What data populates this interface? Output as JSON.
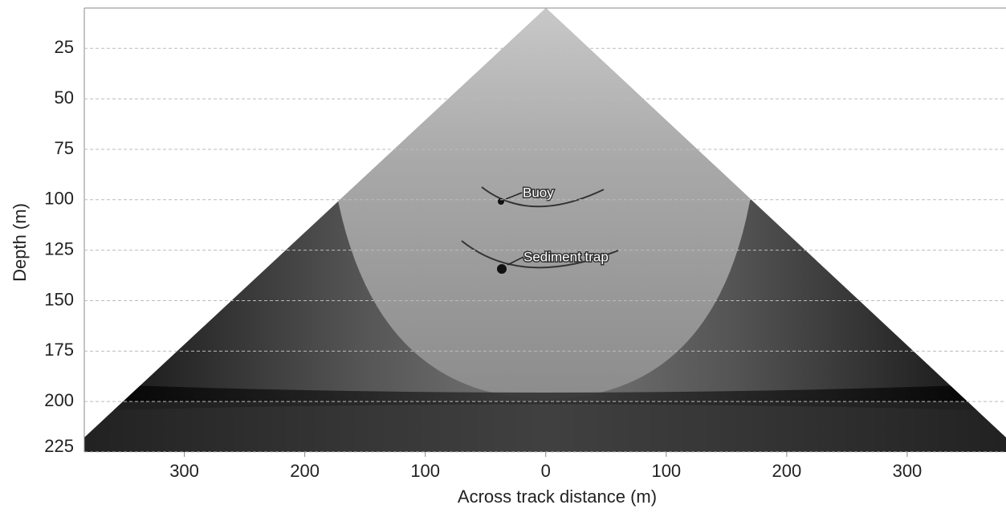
{
  "chart_data": {
    "type": "image",
    "xlabel": "Across track distance (m)",
    "ylabel": "Depth (m)",
    "xlim": [
      -383,
      382
    ],
    "xticks": [
      {
        "value": -300,
        "label": "300"
      },
      {
        "value": -200,
        "label": "200"
      },
      {
        "value": -100,
        "label": "100"
      },
      0,
      100,
      200,
      300
    ],
    "ylim": [
      5,
      225
    ],
    "yticks": [
      25,
      50,
      75,
      100,
      125,
      150,
      175,
      200,
      225
    ],
    "grid": true,
    "annotations": [
      "Buoy",
      "Sediment trap"
    ]
  }
}
